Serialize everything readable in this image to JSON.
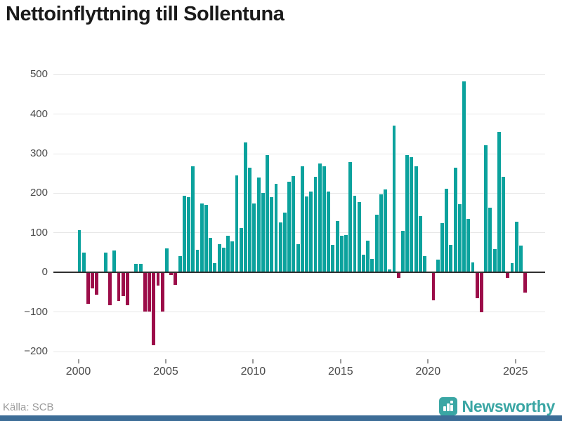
{
  "title": "Nettoinflyttning till Sollentuna",
  "footer": {
    "source": "Källa: SCB",
    "brand": "Newsworthy"
  },
  "colors": {
    "positive": "#0ba29d",
    "negative": "#9c0d49",
    "grid": "#e7e7e7",
    "zero_axis": "#2f2f2f",
    "tick": "#999999",
    "tick_label": "#4a4a4a",
    "title": "#1a1a1a",
    "source": "#9b9b9b",
    "brand": "#3aa6a4",
    "bottom_bar": "#3d6d97"
  },
  "chart_data": {
    "type": "bar",
    "title": "Nettoinflyttning till Sollentuna",
    "frequency": "quarterly",
    "start_year": 2000,
    "start_quarter": 1,
    "values": [
      107,
      50,
      -79,
      -40,
      -57,
      0,
      50,
      -83,
      55,
      -72,
      -60,
      -83,
      0,
      22,
      21,
      -98,
      -98,
      -184,
      -33,
      -98,
      60,
      -6,
      -31,
      41,
      194,
      190,
      268,
      57,
      174,
      171,
      87,
      23,
      72,
      62,
      93,
      78,
      245,
      112,
      328,
      265,
      174,
      239,
      201,
      297,
      190,
      223,
      126,
      152,
      229,
      244,
      71,
      269,
      192,
      205,
      241,
      275,
      268,
      205,
      70,
      130,
      92,
      95,
      279,
      194,
      177,
      44,
      80,
      34,
      145,
      198,
      210,
      7,
      371,
      -14,
      105,
      296,
      291,
      269,
      142,
      41,
      0,
      -71,
      32,
      125,
      211,
      70,
      264,
      173,
      483,
      135,
      25,
      -65,
      -100,
      321,
      163,
      59,
      355,
      241,
      -14,
      24,
      128,
      68,
      -50
    ],
    "xticks": [
      "2000",
      "2005",
      "2010",
      "2015",
      "2020",
      "2025"
    ],
    "yticks": [
      500,
      400,
      300,
      200,
      100,
      0,
      -100,
      -200
    ],
    "ytick_labels": [
      "500",
      "400",
      "300",
      "200",
      "100",
      "0",
      "−100",
      "−200"
    ],
    "ylim": [
      -200,
      500
    ],
    "xlabel": "",
    "ylabel": "",
    "legend": "none",
    "grid": "horizontal"
  }
}
